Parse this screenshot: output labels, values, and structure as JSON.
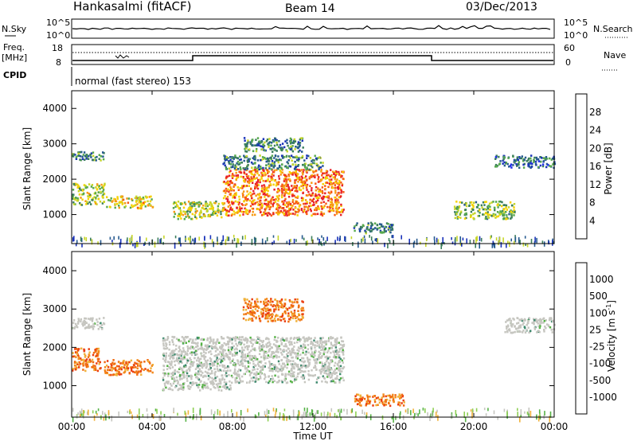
{
  "header": {
    "station": "Hankasalmi (fitACF)",
    "beam": "Beam 14",
    "date": "03/Dec/2013"
  },
  "params": {
    "nsky_label": "N.Sky",
    "nsearch_label": "N.Search",
    "freq_label_1": "Freq.",
    "freq_label_2": "[MHz]",
    "nave_label": "Nave",
    "cpid_label": "CPID",
    "cpid_value": "normal (fast stereo) 153",
    "noise_ticks": [
      "10^5",
      "10^0"
    ],
    "noise_right_ticks": [
      "10^5",
      "10^0"
    ],
    "freq_ticks": [
      "18",
      "8"
    ],
    "nave_ticks": [
      "60",
      "0"
    ]
  },
  "axes": {
    "time_ticks": [
      "00:00",
      "04:00",
      "08:00",
      "12:00",
      "16:00",
      "20:00",
      "00:00"
    ],
    "xlabel": "Time UT",
    "range_ticks": [
      "4000",
      "3000",
      "2000",
      "1000"
    ],
    "ylabel": "Slant Range [km]"
  },
  "power_bar": {
    "label": "Power [dB]",
    "ticks": [
      "28",
      "24",
      "20",
      "16",
      "12",
      "8",
      "4"
    ],
    "colors": [
      "#e8202a",
      "#f85a14",
      "#f79a14",
      "#f5d200",
      "#c7d62a",
      "#58a94e",
      "#3b7e5c",
      "#265a8f",
      "#1a33b9",
      "#2030e8"
    ]
  },
  "velocity_bar": {
    "label": "Velocity [m s^-1]",
    "ticks": [
      "1000",
      "500",
      "100",
      "25",
      "-25",
      "-100",
      "-500",
      "-1000"
    ],
    "colors": [
      "#1e3fae",
      "#2f6b9a",
      "#3e8a6e",
      "#56b246",
      "#8fcf55",
      "#c6c6c0",
      "#c6c6c0",
      "#f0b23a",
      "#f38a1c",
      "#f06a10",
      "#ea3d10",
      "#e21a1a"
    ]
  },
  "chart_data": [
    {
      "type": "heatmap",
      "title": "Power",
      "xlabel": "Time UT",
      "ylabel": "Slant Range [km]",
      "xlim": [
        0,
        24
      ],
      "ylim": [
        180,
        4500
      ],
      "zlabel": "Power [dB]",
      "zlim": [
        0,
        30
      ],
      "echo_regions": [
        {
          "t": [
            0.0,
            1.6
          ],
          "r": [
            2550,
            2800
          ],
          "level": 12
        },
        {
          "t": [
            0.0,
            1.6
          ],
          "r": [
            1300,
            1900
          ],
          "level": 18
        },
        {
          "t": [
            1.7,
            4.0
          ],
          "r": [
            1200,
            1550
          ],
          "level": 20
        },
        {
          "t": [
            5.0,
            7.5
          ],
          "r": [
            900,
            1400
          ],
          "level": 18
        },
        {
          "t": [
            7.5,
            13.5
          ],
          "r": [
            1000,
            2300
          ],
          "level": 26
        },
        {
          "t": [
            7.5,
            12.5
          ],
          "r": [
            2300,
            2700
          ],
          "level": 12
        },
        {
          "t": [
            8.5,
            11.5
          ],
          "r": [
            2800,
            3200
          ],
          "level": 12
        },
        {
          "t": [
            14.0,
            16.0
          ],
          "r": [
            500,
            800
          ],
          "level": 12
        },
        {
          "t": [
            19.0,
            22.0
          ],
          "r": [
            900,
            1400
          ],
          "level": 16
        },
        {
          "t": [
            21.0,
            24.0
          ],
          "r": [
            2350,
            2700
          ],
          "level": 10
        }
      ]
    },
    {
      "type": "heatmap",
      "title": "Velocity",
      "xlabel": "Time UT",
      "ylabel": "Slant Range [km]",
      "xlim": [
        0,
        24
      ],
      "ylim": [
        180,
        4500
      ],
      "zlabel": "Velocity [m s^-1]",
      "zlim": [
        -1000,
        1000
      ],
      "echo_regions": [
        {
          "t": [
            0.0,
            1.6
          ],
          "r": [
            2500,
            2800
          ],
          "level": 0
        },
        {
          "t": [
            0.0,
            1.4
          ],
          "r": [
            1400,
            2000
          ],
          "level": -200
        },
        {
          "t": [
            1.6,
            4.0
          ],
          "r": [
            1300,
            1700
          ],
          "level": -300
        },
        {
          "t": [
            4.5,
            8.0
          ],
          "r": [
            900,
            2300
          ],
          "level": 0
        },
        {
          "t": [
            8.0,
            13.5
          ],
          "r": [
            1100,
            2300
          ],
          "level": 0
        },
        {
          "t": [
            8.5,
            11.5
          ],
          "r": [
            2700,
            3300
          ],
          "level": -200
        },
        {
          "t": [
            14.0,
            16.5
          ],
          "r": [
            500,
            800
          ],
          "level": -150
        },
        {
          "t": [
            21.5,
            24.0
          ],
          "r": [
            2400,
            2800
          ],
          "level": 0
        }
      ]
    }
  ]
}
